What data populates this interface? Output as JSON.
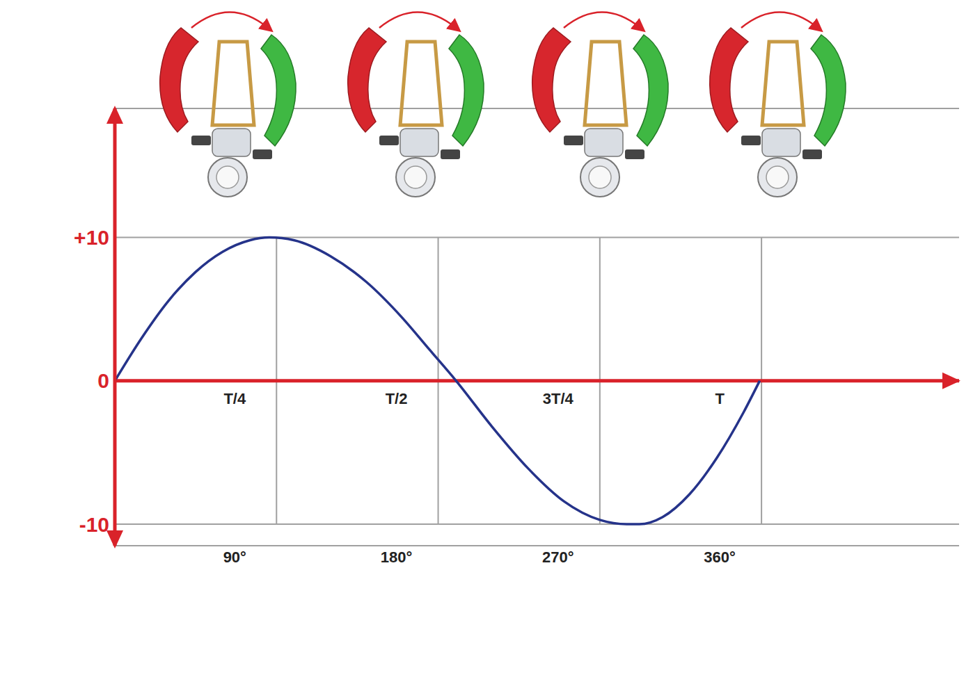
{
  "chart_data": {
    "type": "line",
    "x": [
      0,
      15,
      30,
      45,
      60,
      75,
      86,
      100,
      120,
      140,
      160,
      175,
      190,
      210,
      230,
      250,
      270,
      285,
      292,
      305,
      320,
      335,
      350,
      359
    ],
    "values": [
      0,
      3.0,
      5.6,
      7.6,
      9.0,
      9.8,
      10,
      9.8,
      8.7,
      6.9,
      4.4,
      2.2,
      0,
      -3.2,
      -6.1,
      -8.4,
      -9.7,
      -10,
      -10,
      -9.5,
      -7.9,
      -5.4,
      -2.2,
      0
    ],
    "color": "#25338a",
    "marker": "none",
    "line_style": "solid",
    "xlim": [
      0,
      470
    ],
    "xticks": [
      {
        "value": 90,
        "label": "90°"
      },
      {
        "value": 180,
        "label": "180°"
      },
      {
        "value": 270,
        "label": "270°"
      },
      {
        "value": 360,
        "label": "360°"
      }
    ],
    "ylim": [
      -11.5,
      19
    ],
    "yticks": [
      -10,
      0,
      {
        "value": 10,
        "label": "+10"
      }
    ],
    "grid": true,
    "annotations": [
      {
        "x": 90,
        "y": 0,
        "text": "T/4"
      },
      {
        "x": 180,
        "y": 0,
        "text": "T/2"
      },
      {
        "x": 270,
        "y": 0,
        "text": "3T/4"
      },
      {
        "x": 360,
        "y": 0,
        "text": "T"
      }
    ]
  }
}
